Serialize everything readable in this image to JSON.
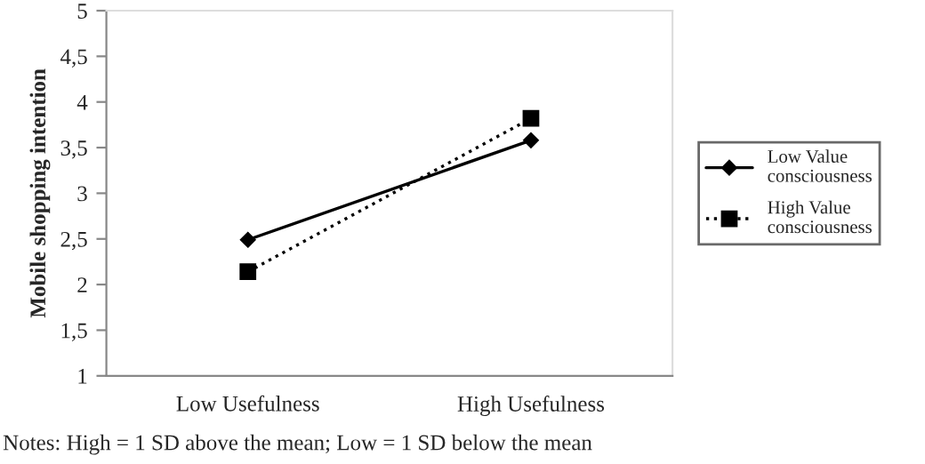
{
  "chart_data": {
    "type": "line",
    "ylabel": "Mobile shopping intention",
    "categories": [
      "Low Usefulness",
      "High Usefulness"
    ],
    "series": [
      {
        "name": "Low Value\nconsciousness",
        "color": "#000000",
        "values": [
          2.49,
          3.58
        ],
        "marker": "diamond",
        "line_style": "solid"
      },
      {
        "name": "High Value\nconsciousness",
        "color": "#000000",
        "values": [
          2.14,
          3.82
        ],
        "marker": "square",
        "line_style": "dotted"
      }
    ],
    "ylim": [
      1,
      5
    ],
    "yticks": [
      1,
      {
        "value": 1.5,
        "label": "1,5"
      },
      2,
      {
        "value": 2.5,
        "label": "2,5"
      },
      3,
      {
        "value": 3.5,
        "label": "3,5"
      },
      4,
      {
        "value": 4.5,
        "label": "4,5"
      },
      5
    ],
    "grid": false,
    "legend": "right",
    "annotations": [
      "Notes: High = 1 SD above the mean; Low = 1 SD below the mean"
    ]
  }
}
